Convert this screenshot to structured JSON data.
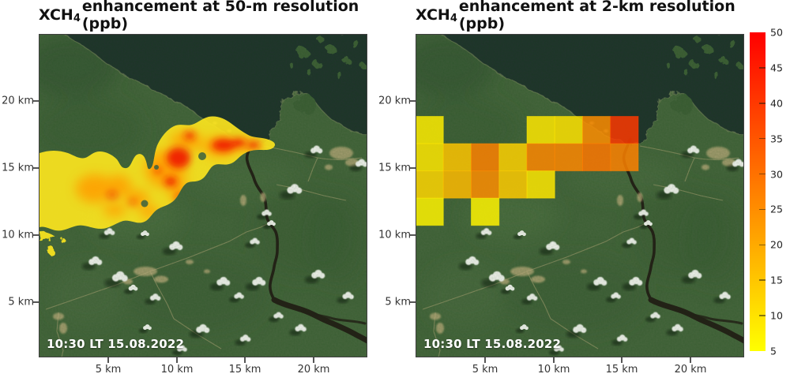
{
  "panels": [
    {
      "id": "50m",
      "title": {
        "prefix": "XCH",
        "sub": "4",
        "rest": " enhancement at 50-m resolution (ppb)"
      },
      "timestamp": "10:30 LT 15.08.2022",
      "x_tick_labels": [
        "5 km",
        "10 km",
        "15 km",
        "20 km"
      ],
      "y_tick_labels": [
        "20 km",
        "15 km",
        "10 km",
        "5 km"
      ]
    },
    {
      "id": "2km",
      "title": {
        "prefix": "XCH",
        "sub": "4",
        "rest": " enhancement at 2-km resolution (ppb)"
      },
      "timestamp": "10:30 LT 15.08.2022",
      "x_tick_labels": [
        "5 km",
        "10 km",
        "15 km",
        "20 km"
      ],
      "y_tick_labels": [
        "20 km",
        "15 km",
        "10 km",
        "5 km"
      ]
    }
  ],
  "colorbar": {
    "tick_labels": [
      "50",
      "45",
      "40",
      "35",
      "30",
      "25",
      "20",
      "15",
      "10",
      "5"
    ],
    "min": 5,
    "max": 50,
    "color_low": "#ffff00",
    "color_high": "#ff0000"
  },
  "colors": {
    "background": "#ffffff",
    "land_green": "#47663e",
    "water_dark": "#20352f",
    "title_text": "#111111",
    "tick_text": "#333333",
    "timestamp_text": "#ffffff"
  },
  "chart_data": [
    {
      "type": "heatmap",
      "title": "XCH4 enhancement at 50-m resolution (ppb)",
      "resolution": "50 m",
      "timestamp": "10:30 LT 15.08.2022",
      "x_ticks_km": [
        5,
        10,
        15,
        20
      ],
      "y_ticks_km": [
        5,
        10,
        15,
        20
      ],
      "x_range_km": [
        0,
        24
      ],
      "y_range_km": [
        0,
        24
      ],
      "colormap": "autumn: yellow = 5 ppb, red = 50 ppb, over satellite basemap",
      "legend_position": "shared colorbar at right",
      "description": "Continuous methane plume from x=0-16.5 km, y=11-18.5 km; yellow margins (~5-10 ppb), orange interior (~20-30 ppb), red cores (~40-50 ppb) concentrated at x=9-16 km, y=15.5-17.5 km near the coast",
      "peak_ppb": 50
    },
    {
      "type": "heatmap",
      "title": "XCH4 enhancement at 2-km resolution (ppb)",
      "resolution": "2 km",
      "timestamp": "10:30 LT 15.08.2022",
      "x_ticks_km": [
        5,
        10,
        15,
        20
      ],
      "y_ticks_km": [
        5,
        10,
        15,
        20
      ],
      "x_range_km": [
        0,
        24
      ],
      "y_range_km": [
        0,
        24
      ],
      "colormap": "autumn: yellow = 5 ppb, red = 50 ppb, semi-transparent cells over satellite basemap",
      "grid": {
        "cell_size_km": 2,
        "x_edges_km": [
          0,
          2,
          4,
          6,
          8,
          10,
          12,
          14,
          16
        ],
        "row_y_ranges_km": [
          [
            17,
            19
          ],
          [
            15,
            17
          ],
          [
            13,
            15
          ],
          [
            11,
            13
          ]
        ],
        "values_ppb": [
          [
            8,
            null,
            null,
            null,
            9,
            10,
            25,
            40
          ],
          [
            9,
            15,
            27,
            13,
            26,
            26,
            29,
            27
          ],
          [
            12,
            17,
            25,
            14,
            9,
            null,
            null,
            null
          ],
          [
            7,
            null,
            7,
            null,
            null,
            null,
            null,
            null
          ]
        ]
      }
    }
  ]
}
